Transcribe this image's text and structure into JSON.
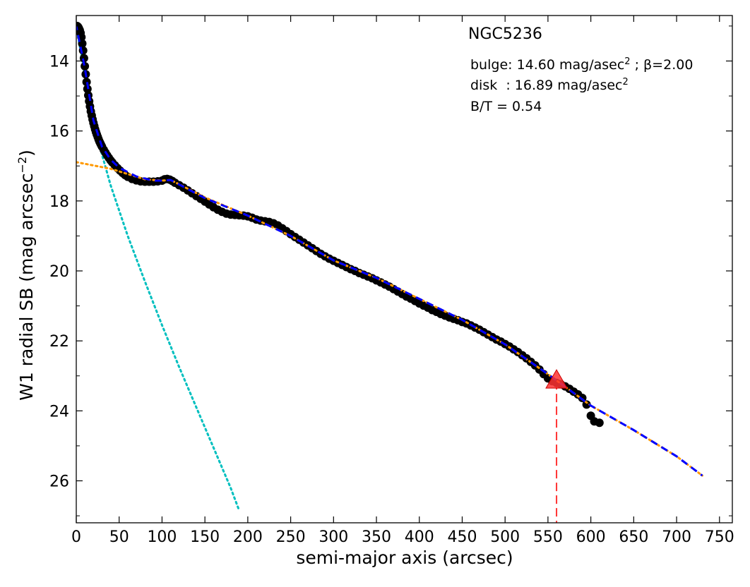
{
  "chart_data": {
    "type": "scatter",
    "title": "NGC5236",
    "xlabel": "semi-major axis (arcsec)",
    "ylabel": "W1 radial SB (mag arcsec",
    "ylabel_exponent": "−2",
    "ylabel_close": ")",
    "xlim": [
      0,
      765
    ],
    "ylim": [
      27.2,
      12.7
    ],
    "y_inverted": true,
    "x_ticks": [
      0,
      50,
      100,
      150,
      200,
      250,
      300,
      350,
      400,
      450,
      500,
      550,
      600,
      650,
      700,
      750
    ],
    "y_ticks": [
      14,
      16,
      18,
      20,
      22,
      24,
      26
    ],
    "grid": false,
    "annotations": {
      "bulge_prefix": "bulge: 14.60 mag/asec",
      "bulge_sup": "2",
      "bulge_beta": " ; β=2.00",
      "disk_prefix": "disk  : 16.89 mag/asec",
      "disk_sup": "2",
      "bt": "B/T = 0.54"
    },
    "fit_parameters": {
      "bulge_mu0": 14.6,
      "bulge_beta": 2.0,
      "disk_mu0": 16.89,
      "b_over_t": 0.54
    },
    "profile_points": {
      "color": "#000000",
      "x": [
        1,
        2,
        3,
        4,
        5,
        6,
        7,
        8,
        9,
        10,
        11,
        12,
        13,
        14,
        15,
        16,
        17,
        18,
        19,
        20,
        21,
        22,
        23,
        24,
        25,
        26,
        27,
        28,
        29,
        30,
        32,
        34,
        36,
        38,
        40,
        42,
        45,
        48,
        51,
        54,
        57,
        60,
        65,
        70,
        75,
        80,
        85,
        90,
        95,
        100,
        103,
        106,
        109,
        112,
        115,
        120,
        125,
        130,
        135,
        140,
        145,
        150,
        155,
        160,
        165,
        170,
        175,
        180,
        185,
        190,
        195,
        200,
        205,
        210,
        215,
        220,
        225,
        230,
        235,
        240,
        245,
        250,
        255,
        260,
        265,
        270,
        275,
        280,
        285,
        290,
        295,
        300,
        305,
        310,
        315,
        320,
        325,
        330,
        335,
        340,
        345,
        350,
        355,
        360,
        365,
        370,
        375,
        380,
        385,
        390,
        395,
        400,
        405,
        410,
        415,
        420,
        425,
        430,
        435,
        440,
        445,
        450,
        455,
        460,
        465,
        470,
        475,
        480,
        485,
        490,
        495,
        500,
        505,
        510,
        515,
        520,
        525,
        530,
        535,
        540,
        545,
        550,
        555,
        560,
        565,
        570,
        575,
        580,
        585,
        590,
        595,
        600,
        604,
        610
      ],
      "y": [
        13.0,
        13.02,
        13.06,
        13.12,
        13.2,
        13.32,
        13.5,
        13.7,
        13.92,
        14.15,
        14.38,
        14.6,
        14.8,
        14.98,
        15.15,
        15.3,
        15.44,
        15.56,
        15.67,
        15.77,
        15.86,
        15.95,
        16.03,
        16.1,
        16.17,
        16.24,
        16.3,
        16.35,
        16.4,
        16.45,
        16.54,
        16.62,
        16.7,
        16.77,
        16.84,
        16.9,
        16.98,
        17.06,
        17.13,
        17.2,
        17.26,
        17.31,
        17.37,
        17.41,
        17.44,
        17.45,
        17.45,
        17.45,
        17.44,
        17.42,
        17.38,
        17.37,
        17.39,
        17.43,
        17.48,
        17.55,
        17.62,
        17.7,
        17.78,
        17.86,
        17.94,
        18.02,
        18.1,
        18.18,
        18.25,
        18.31,
        18.36,
        18.39,
        18.4,
        18.41,
        18.42,
        18.44,
        18.48,
        18.53,
        18.56,
        18.58,
        18.6,
        18.64,
        18.7,
        18.78,
        18.86,
        18.95,
        19.03,
        19.11,
        19.19,
        19.27,
        19.35,
        19.43,
        19.51,
        19.58,
        19.65,
        19.71,
        19.77,
        19.83,
        19.89,
        19.95,
        20.0,
        20.06,
        20.11,
        20.16,
        20.21,
        20.27,
        20.33,
        20.39,
        20.45,
        20.52,
        20.59,
        20.66,
        20.73,
        20.79,
        20.86,
        20.93,
        20.99,
        21.05,
        21.12,
        21.17,
        21.23,
        21.28,
        21.33,
        21.37,
        21.41,
        21.46,
        21.5,
        21.56,
        21.62,
        21.68,
        21.75,
        21.82,
        21.89,
        21.96,
        22.02,
        22.09,
        22.16,
        22.24,
        22.32,
        22.41,
        22.5,
        22.6,
        22.7,
        22.82,
        22.95,
        23.07,
        23.15,
        23.2,
        23.24,
        23.3,
        23.37,
        23.45,
        23.53,
        23.63,
        23.82,
        24.14,
        24.3,
        24.34
      ]
    },
    "bulge_model": {
      "color": "#00bfbf",
      "style": "dotted",
      "x": [
        0,
        20,
        40,
        60,
        80,
        100,
        120,
        140,
        160,
        180,
        190
      ],
      "y": [
        13.0,
        15.8,
        17.55,
        19.0,
        20.3,
        21.55,
        22.75,
        23.9,
        25.05,
        26.2,
        26.85
      ]
    },
    "disk_model": {
      "color": "#ff9900",
      "style": "dotted",
      "x": [
        0,
        40,
        80,
        100,
        110,
        150,
        200,
        250,
        300,
        350,
        400,
        450,
        500,
        550,
        600,
        650,
        700,
        730
      ],
      "y": [
        16.89,
        17.08,
        17.38,
        17.42,
        17.4,
        17.9,
        18.42,
        19.0,
        19.7,
        20.2,
        20.8,
        21.4,
        22.1,
        22.95,
        23.85,
        24.55,
        25.3,
        25.85
      ]
    },
    "total_model": {
      "color": "#0000ff",
      "style": "dashed",
      "x": [
        0,
        10,
        20,
        30,
        40,
        50,
        70,
        90,
        100,
        110,
        150,
        200,
        250,
        300,
        350,
        400,
        450,
        500,
        550,
        600,
        650,
        700,
        730
      ],
      "y": [
        13.0,
        14.2,
        15.7,
        16.45,
        16.82,
        17.05,
        17.3,
        17.42,
        17.42,
        17.4,
        17.92,
        18.42,
        19.0,
        19.7,
        20.2,
        20.8,
        21.4,
        22.1,
        22.95,
        23.85,
        24.55,
        25.3,
        25.85
      ]
    },
    "marker": {
      "shape": "triangle",
      "color": "#ff3333",
      "x": 560,
      "y": 23.15
    },
    "vline": {
      "color": "#ff3333",
      "style": "dashed",
      "x": 560
    }
  }
}
